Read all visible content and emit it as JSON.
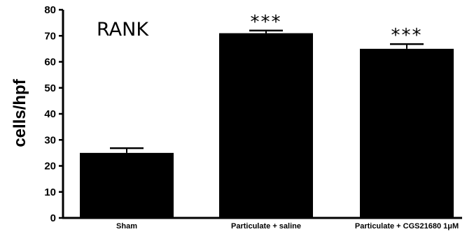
{
  "chart_data": {
    "type": "bar",
    "title": "RANK",
    "ylabel": "cells/hpf",
    "xlabel": "",
    "ylim": [
      0,
      80
    ],
    "yticks": [
      0,
      10,
      20,
      30,
      40,
      50,
      60,
      70,
      80
    ],
    "categories": [
      "Sham",
      "Particulate + saline",
      "Particulate + CGS21680 1μM"
    ],
    "values": [
      25,
      71,
      65
    ],
    "errors": [
      1.8,
      1.0,
      1.8
    ],
    "significance": [
      "",
      "***",
      "***"
    ],
    "grid": false,
    "colors": {
      "bar": "#000000",
      "axis": "#000000"
    }
  }
}
